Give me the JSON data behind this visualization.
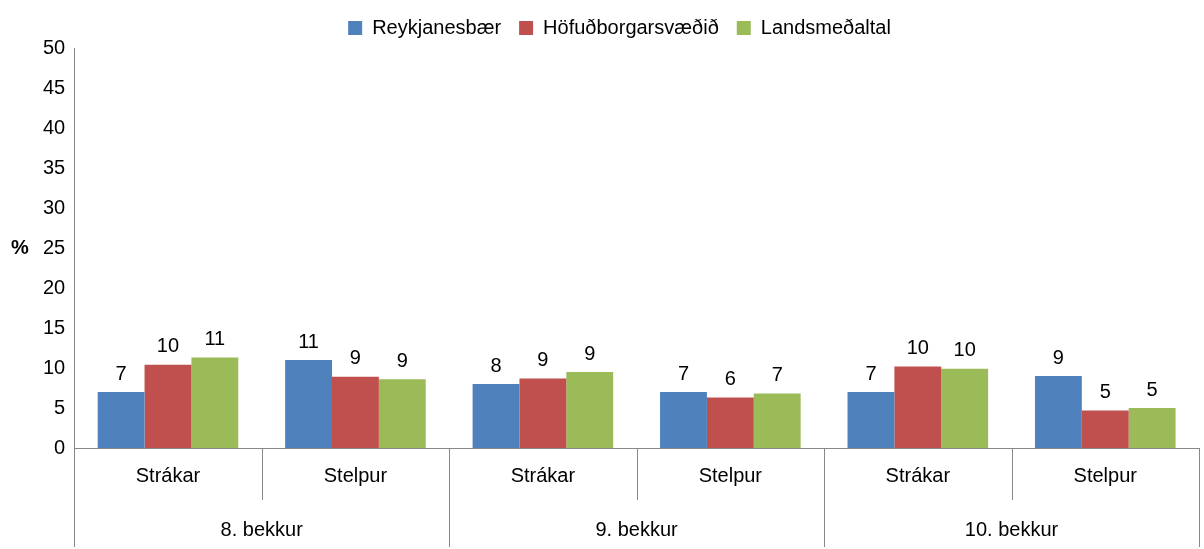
{
  "chart_data": {
    "type": "bar",
    "ylabel": "%",
    "categories": [
      "Strákar",
      "Stelpur",
      "Strákar",
      "Stelpur",
      "Strákar",
      "Stelpur"
    ],
    "annotations": [
      "8. bekkur",
      "9. bekkur",
      "10. bekkur"
    ],
    "series": [
      {
        "name": "Reykjanesbær",
        "color": "#4f81bd",
        "values": [
          7,
          11,
          8,
          7,
          7,
          9
        ],
        "value_labels": [
          "7",
          "11",
          "8",
          "7",
          "7",
          "9"
        ]
      },
      {
        "name": "Höfuðborgarsvæðið",
        "color": "#c0504d",
        "values": [
          10.4,
          8.9,
          8.7,
          6.3,
          10.2,
          4.7
        ],
        "value_labels": [
          "10",
          "9",
          "9",
          "6",
          "10",
          "5"
        ]
      },
      {
        "name": "Landsmeðaltal",
        "color": "#9bbb59",
        "values": [
          11.3,
          8.6,
          9.5,
          6.8,
          9.9,
          5.0
        ],
        "value_labels": [
          "11",
          "9",
          "9",
          "7",
          "10",
          "5"
        ]
      }
    ],
    "ylim": [
      0,
      50
    ],
    "yticks": [
      0,
      5,
      10,
      15,
      20,
      25,
      30,
      35,
      40,
      45,
      50
    ],
    "grid": false,
    "legend": "top"
  }
}
